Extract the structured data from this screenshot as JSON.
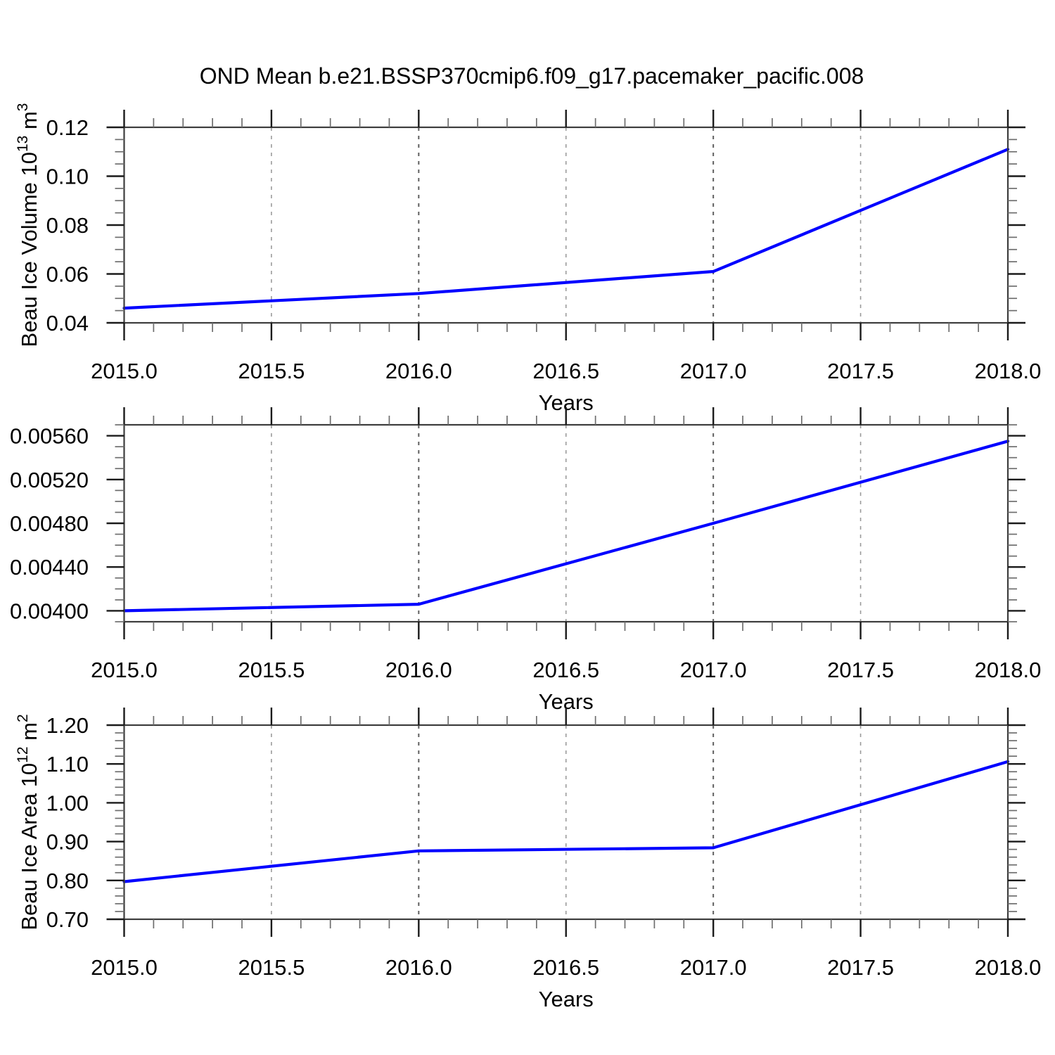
{
  "chart_data": {
    "type": "line",
    "title": "OND Mean b.e21.BSSP370cmip6.f09_g17.pacemaker_pacific.008",
    "line_color": "#0000FF",
    "grid_color_half": "#9b9b9b",
    "grid_color_year": "#5f5f5f",
    "box_color": "#3d3d3d",
    "x": [
      2015.0,
      2016.0,
      2017.0,
      2018.0
    ],
    "x_axis": {
      "label": "Years",
      "lim": [
        2015.0,
        2018.0
      ],
      "major_ticks": [
        2015.0,
        2015.5,
        2016.0,
        2016.5,
        2017.0,
        2017.5,
        2018.0
      ],
      "tick_labels": [
        "2015.0",
        "2015.5",
        "2016.0",
        "2016.5",
        "2017.0",
        "2017.5",
        "2018.0"
      ],
      "minor_step": 0.1,
      "gridlines": [
        2015.5,
        2016.0,
        2016.5,
        2017.0,
        2017.5
      ]
    },
    "panels": [
      {
        "name": "beau-ice-volume",
        "ylabel": "Beau Ice Volume 10^13 m^3",
        "ylabel_rich": [
          {
            "t": "Beau Ice Volume 10"
          },
          {
            "t": "13",
            "sup": true
          },
          {
            "t": " m"
          },
          {
            "t": "3",
            "sup": true
          }
        ],
        "ylim": [
          0.04,
          0.12
        ],
        "yticks": [
          0.04,
          0.06,
          0.08,
          0.1,
          0.12
        ],
        "ytick_labels": [
          "0.04",
          "0.06",
          "0.08",
          "0.10",
          "0.12"
        ],
        "y_minor_step": 0.005,
        "values": [
          0.046,
          0.052,
          0.061,
          0.111
        ]
      },
      {
        "name": "middle-series",
        "ylabel": null,
        "ylabel_rich": null,
        "ylim": [
          0.0039,
          0.0057
        ],
        "yticks": [
          0.004,
          0.0044,
          0.0048,
          0.0052,
          0.0056
        ],
        "ytick_labels": [
          "0.00400",
          "0.00440",
          "0.00480",
          "0.00520",
          "0.00560"
        ],
        "y_minor_step": 0.0001,
        "values": [
          0.004,
          0.00406,
          0.0048,
          0.00555
        ]
      },
      {
        "name": "beau-ice-area",
        "ylabel": "Beau Ice Area 10^12 m^2",
        "ylabel_rich": [
          {
            "t": "Beau Ice Area 10"
          },
          {
            "t": "12",
            "sup": true
          },
          {
            "t": " m"
          },
          {
            "t": "2",
            "sup": true
          }
        ],
        "ylim": [
          0.7,
          1.2
        ],
        "yticks": [
          0.7,
          0.8,
          0.9,
          1.0,
          1.1,
          1.2
        ],
        "ytick_labels": [
          "0.70",
          "0.80",
          "0.90",
          "1.00",
          "1.10",
          "1.20"
        ],
        "y_minor_step": 0.02,
        "values": [
          0.797,
          0.876,
          0.884,
          1.106
        ]
      }
    ]
  }
}
